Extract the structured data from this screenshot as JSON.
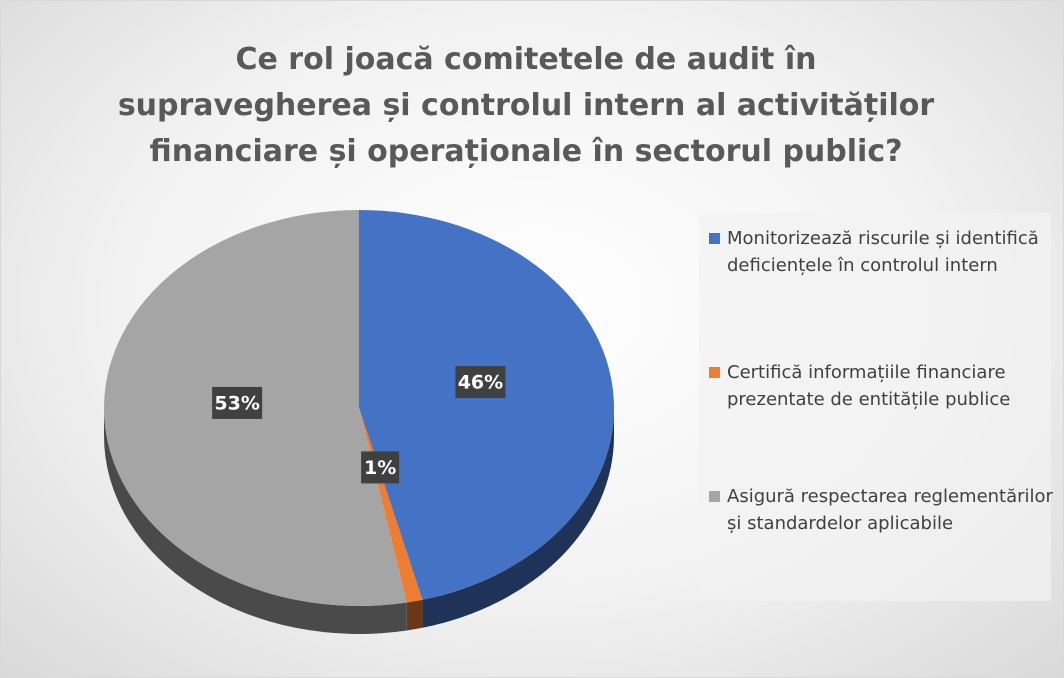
{
  "chart_data": {
    "type": "pie",
    "title": "Ce rol joacă comitetele de audit în supravegherea și controlul intern al activităților financiare și operaționale în sectorul public?",
    "categories": [
      "Monitorizează riscurile și identifică deficiențele în controlul intern",
      "Certifică informațiile financiare prezentate de entitățile publice",
      "Asigură respectarea reglementărilor și standardelor aplicabile"
    ],
    "values": [
      46,
      1,
      53
    ],
    "value_labels": [
      "46%",
      "1%",
      "53%"
    ],
    "colors": [
      "#4472c4",
      "#ed7d31",
      "#a5a5a5"
    ],
    "legend": "right"
  }
}
